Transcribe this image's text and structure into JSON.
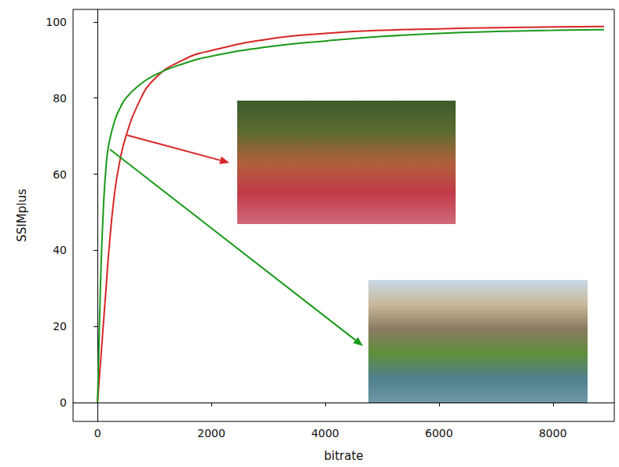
{
  "chart_data": {
    "type": "line",
    "x_label": "bitrate",
    "y_label": "SSIMplus",
    "x": [
      0,
      50,
      100,
      150,
      200,
      300,
      400,
      500,
      700,
      1000,
      1500,
      2000,
      3000,
      4000,
      5000,
      6000,
      7000,
      8000,
      8900
    ],
    "series": [
      {
        "color": "#d62728",
        "values": [
          0,
          10,
          20,
          30,
          40,
          55,
          64,
          70,
          78,
          85,
          90,
          92.5,
          95.5,
          97,
          97.8,
          98.2,
          98.5,
          98.7,
          98.8
        ]
      },
      {
        "color": "#1a9a1a",
        "values": [
          0,
          30,
          50,
          62,
          68,
          74,
          77.5,
          80,
          83,
          86,
          89,
          91,
          93.5,
          95,
          96.2,
          97,
          97.5,
          97.8,
          98
        ]
      }
    ],
    "xlim": [
      -430,
      9080
    ],
    "xticks": [
      0,
      2000,
      4000,
      6000,
      8000
    ],
    "ylim": [
      -5,
      103.3
    ],
    "yticks": [
      0,
      20,
      40,
      60,
      80,
      100
    ],
    "grid": false
  }
}
